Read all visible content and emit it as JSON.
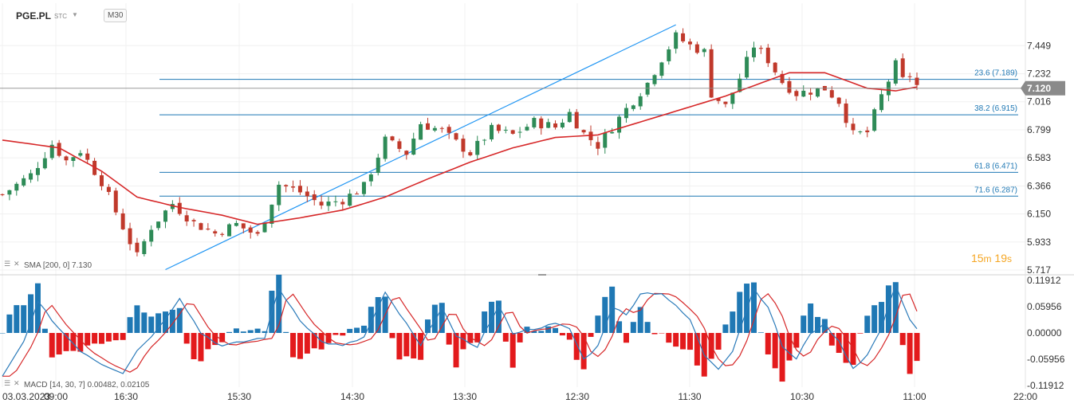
{
  "header": {
    "symbol": "PGE.PL",
    "exchange": "STC",
    "timeframe": "M30"
  },
  "timer": {
    "minutes": "15",
    "m": "m",
    "seconds": "19",
    "s": "s"
  },
  "indicators": {
    "sma_label": "SMA  [200, 0]  7.130",
    "macd_label": "MACD  [14, 30, 7]  0.00482,  0.02105"
  },
  "colors": {
    "up": "#2e8b57",
    "down": "#c0392b",
    "sma": "#d62728",
    "macd_line": "#2a7ab9",
    "signal_line": "#d62728",
    "hist_pos": "#1f78b4",
    "hist_neg": "#e31a1c",
    "fib": "#1f78b4",
    "price_tag": "#8a8a8a"
  },
  "chart_data": [
    {
      "type": "candlestick",
      "ylim": [
        5.717,
        7.666
      ],
      "yticks": [
        "7.449",
        "7.232",
        "7.016",
        "6.799",
        "6.583",
        "6.366",
        "6.150",
        "5.933",
        "5.717"
      ],
      "last_price": "7.120",
      "xticks": [
        "03.03.2023",
        "09:00",
        "16:30",
        "15:30",
        "14:30",
        "13:30",
        "12:30",
        "11:30",
        "10:30",
        "11:00",
        "22:00"
      ],
      "close_path": [
        [
          0,
          6.3
        ],
        [
          4,
          6.45
        ],
        [
          7,
          6.69
        ],
        [
          9,
          6.56
        ],
        [
          11,
          6.64
        ],
        [
          14,
          6.4
        ],
        [
          17,
          6.05
        ],
        [
          19,
          5.82
        ],
        [
          21,
          6.05
        ],
        [
          24,
          6.23
        ],
        [
          27,
          6.08
        ],
        [
          30,
          6.0
        ],
        [
          33,
          6.07
        ],
        [
          36,
          5.98
        ],
        [
          39,
          6.38
        ],
        [
          42,
          6.32
        ],
        [
          45,
          6.22
        ],
        [
          48,
          6.26
        ],
        [
          51,
          6.36
        ],
        [
          54,
          6.72
        ],
        [
          57,
          6.62
        ],
        [
          59,
          6.85
        ],
        [
          62,
          6.79
        ],
        [
          64,
          6.7
        ],
        [
          66,
          6.62
        ],
        [
          69,
          6.8
        ],
        [
          72,
          6.76
        ],
        [
          75,
          6.86
        ],
        [
          78,
          6.82
        ],
        [
          80,
          6.93
        ],
        [
          82,
          6.77
        ],
        [
          84,
          6.68
        ],
        [
          86,
          6.82
        ],
        [
          88,
          6.96
        ],
        [
          91,
          7.16
        ],
        [
          93,
          7.35
        ],
        [
          95,
          7.52
        ],
        [
          97,
          7.45
        ],
        [
          99,
          7.4
        ],
        [
          100,
          7.08
        ],
        [
          102,
          6.98
        ],
        [
          104,
          7.2
        ],
        [
          106,
          7.45
        ],
        [
          108,
          7.34
        ],
        [
          110,
          7.17
        ],
        [
          112,
          7.08
        ],
        [
          114,
          7.1
        ],
        [
          116,
          7.12
        ],
        [
          118,
          7.02
        ],
        [
          120,
          6.76
        ],
        [
          122,
          6.78
        ],
        [
          124,
          7.06
        ],
        [
          126,
          7.3
        ],
        [
          127,
          7.18
        ],
        [
          128,
          7.22
        ],
        [
          129,
          7.14
        ]
      ],
      "sma_path": [
        [
          0,
          6.72
        ],
        [
          8,
          6.66
        ],
        [
          14,
          6.48
        ],
        [
          19,
          6.28
        ],
        [
          25,
          6.2
        ],
        [
          31,
          6.14
        ],
        [
          36,
          6.07
        ],
        [
          42,
          6.12
        ],
        [
          48,
          6.18
        ],
        [
          54,
          6.28
        ],
        [
          60,
          6.42
        ],
        [
          66,
          6.55
        ],
        [
          72,
          6.66
        ],
        [
          78,
          6.74
        ],
        [
          84,
          6.76
        ],
        [
          90,
          6.86
        ],
        [
          96,
          6.96
        ],
        [
          102,
          7.06
        ],
        [
          108,
          7.18
        ],
        [
          111,
          7.24
        ],
        [
          116,
          7.24
        ],
        [
          122,
          7.12
        ],
        [
          126,
          7.1
        ],
        [
          129,
          7.13
        ]
      ],
      "trendline": {
        "from": [
          23,
          5.72
        ],
        "to": [
          95,
          7.61
        ]
      },
      "fib_levels": [
        {
          "label": "23.6 (7.189)",
          "value": 7.189
        },
        {
          "label": "38.2 (6.915)",
          "value": 6.915
        },
        {
          "label": "61.8 (6.471)",
          "value": 6.471
        },
        {
          "label": "71.6 (6.287)",
          "value": 6.287
        }
      ],
      "bars": 130
    },
    {
      "type": "macd",
      "ylim": [
        -0.11912,
        0.11912
      ],
      "yticks": [
        "0.11912",
        "0.05956",
        "0.00000",
        "-0.05956",
        "-0.11912"
      ],
      "macd_path": [
        [
          0,
          -0.1
        ],
        [
          3,
          -0.02
        ],
        [
          5,
          0.07
        ],
        [
          8,
          0.01
        ],
        [
          11,
          -0.04
        ],
        [
          14,
          -0.07
        ],
        [
          17,
          -0.09
        ],
        [
          19,
          -0.04
        ],
        [
          22,
          0.01
        ],
        [
          25,
          0.08
        ],
        [
          28,
          0.0
        ],
        [
          31,
          -0.03
        ],
        [
          34,
          -0.02
        ],
        [
          37,
          -0.01
        ],
        [
          39,
          0.1
        ],
        [
          42,
          0.03
        ],
        [
          45,
          -0.02
        ],
        [
          48,
          -0.03
        ],
        [
          51,
          -0.01
        ],
        [
          54,
          0.09
        ],
        [
          57,
          0.02
        ],
        [
          59,
          -0.03
        ],
        [
          62,
          0.06
        ],
        [
          64,
          -0.01
        ],
        [
          67,
          -0.03
        ],
        [
          70,
          0.06
        ],
        [
          72,
          0.0
        ],
        [
          75,
          0.01
        ],
        [
          78,
          0.02
        ],
        [
          80,
          0.01
        ],
        [
          82,
          -0.06
        ],
        [
          84,
          -0.03
        ],
        [
          86,
          0.06
        ],
        [
          88,
          0.04
        ],
        [
          90,
          0.09
        ],
        [
          93,
          0.09
        ],
        [
          95,
          0.06
        ],
        [
          97,
          0.03
        ],
        [
          99,
          -0.05
        ],
        [
          101,
          -0.08
        ],
        [
          103,
          -0.04
        ],
        [
          106,
          0.1
        ],
        [
          108,
          0.06
        ],
        [
          110,
          -0.03
        ],
        [
          112,
          -0.06
        ],
        [
          114,
          0.0
        ],
        [
          116,
          0.02
        ],
        [
          118,
          -0.02
        ],
        [
          120,
          -0.08
        ],
        [
          122,
          -0.05
        ],
        [
          124,
          0.01
        ],
        [
          126,
          0.11
        ],
        [
          128,
          0.03
        ],
        [
          129,
          0.01
        ]
      ],
      "bars": 130
    }
  ]
}
